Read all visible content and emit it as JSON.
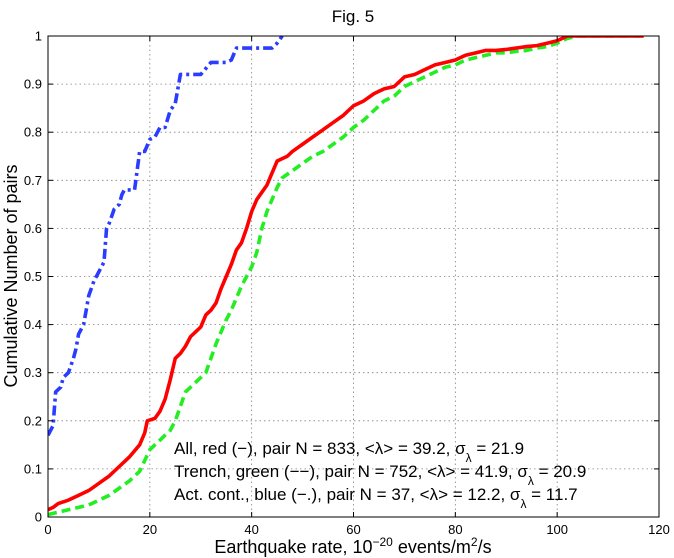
{
  "chart_data": {
    "type": "line",
    "title": "Fig. 5",
    "xlabel_prefix": "Earthquake rate, 10",
    "xlabel_exponent": "−20",
    "xlabel_mid": " events/m",
    "xlabel_exponent2": "2",
    "xlabel_suffix": "/s",
    "ylabel": "Cumulative Number of pairs",
    "xlim": [
      0,
      120
    ],
    "ylim": [
      0,
      1
    ],
    "xticks": [
      0,
      20,
      40,
      60,
      80,
      100,
      120
    ],
    "xtick_labels": [
      "0",
      "20",
      "40",
      "60",
      "80",
      "100",
      "120"
    ],
    "yticks": [
      0,
      0.1,
      0.2,
      0.3,
      0.4,
      0.5,
      0.6,
      0.7,
      0.8,
      0.9,
      1
    ],
    "ytick_labels": [
      "0",
      "0.1",
      "0.2",
      "0.3",
      "0.4",
      "0.5",
      "0.6",
      "0.7",
      "0.8",
      "0.9",
      "1"
    ],
    "grid": true,
    "legend_position": "bottom-right",
    "series": [
      {
        "name": "All",
        "label_text": "All, red (−), pair N = 833,  <λ> = 39.2,  σ",
        "label_sub": "λ",
        "label_end": " = 21.9",
        "color": "#ff0000",
        "dash": "solid",
        "x": [
          0,
          1,
          2,
          4,
          6,
          8,
          10,
          12,
          14,
          16,
          18,
          19,
          19.5,
          21,
          22,
          23,
          24,
          25,
          26,
          27,
          28,
          29,
          30,
          31,
          32,
          33,
          34,
          35,
          36,
          37,
          38,
          39,
          40,
          41,
          42,
          43,
          44,
          45,
          46,
          47,
          48,
          50,
          52,
          54,
          56,
          58,
          60,
          62,
          64,
          65,
          66,
          68,
          70,
          72,
          74,
          76,
          78,
          80,
          82,
          84,
          86,
          88,
          90,
          92,
          94,
          96,
          98,
          100,
          102,
          104,
          110,
          117
        ],
        "y": [
          0.015,
          0.02,
          0.028,
          0.035,
          0.045,
          0.055,
          0.07,
          0.085,
          0.105,
          0.125,
          0.15,
          0.175,
          0.2,
          0.205,
          0.22,
          0.245,
          0.285,
          0.33,
          0.34,
          0.355,
          0.375,
          0.385,
          0.395,
          0.42,
          0.43,
          0.445,
          0.475,
          0.5,
          0.525,
          0.555,
          0.57,
          0.6,
          0.635,
          0.66,
          0.675,
          0.69,
          0.715,
          0.74,
          0.745,
          0.75,
          0.76,
          0.775,
          0.79,
          0.805,
          0.82,
          0.835,
          0.855,
          0.865,
          0.88,
          0.885,
          0.89,
          0.895,
          0.915,
          0.92,
          0.93,
          0.94,
          0.945,
          0.95,
          0.96,
          0.965,
          0.97,
          0.97,
          0.972,
          0.975,
          0.978,
          0.98,
          0.985,
          0.99,
          1.0,
          1.0,
          1.0,
          1.0
        ]
      },
      {
        "name": "Trench",
        "label_text": "Trench, green (−−), pair N = 752,  <λ> = 41.9,  σ",
        "label_sub": "λ",
        "label_end": " = 20.9",
        "color": "#22ee22",
        "dash": "dashed",
        "x": [
          0,
          2,
          4,
          6,
          8,
          10,
          12,
          14,
          16,
          18,
          20,
          22,
          24,
          25,
          26,
          27,
          28,
          29,
          30,
          31,
          32,
          33,
          34,
          35,
          36,
          37,
          38,
          39,
          40,
          41,
          42,
          43,
          44,
          45,
          46,
          48,
          50,
          52,
          54,
          56,
          58,
          60,
          62,
          64,
          66,
          68,
          70,
          72,
          74,
          76,
          78,
          80,
          82,
          84,
          86,
          88,
          90,
          92,
          94,
          96,
          98,
          100,
          102,
          104,
          110,
          117
        ],
        "y": [
          0.005,
          0.01,
          0.015,
          0.02,
          0.025,
          0.035,
          0.045,
          0.06,
          0.075,
          0.095,
          0.14,
          0.16,
          0.18,
          0.2,
          0.23,
          0.26,
          0.27,
          0.28,
          0.29,
          0.3,
          0.33,
          0.36,
          0.385,
          0.41,
          0.43,
          0.455,
          0.48,
          0.5,
          0.52,
          0.55,
          0.6,
          0.635,
          0.66,
          0.685,
          0.705,
          0.72,
          0.735,
          0.75,
          0.76,
          0.775,
          0.79,
          0.81,
          0.825,
          0.845,
          0.865,
          0.875,
          0.895,
          0.905,
          0.915,
          0.925,
          0.935,
          0.94,
          0.95,
          0.955,
          0.96,
          0.965,
          0.965,
          0.968,
          0.97,
          0.975,
          0.978,
          0.985,
          0.995,
          1.0,
          1.0,
          1.0
        ]
      },
      {
        "name": "Act. cont.",
        "label_text": "Act. cont., blue (−.), pair N = 37,  <λ> = 12.2,  σ",
        "label_sub": "λ",
        "label_end": " = 11.7",
        "color": "#2a3cff",
        "dash": "dashdot",
        "x": [
          0,
          1,
          1.5,
          2.5,
          3,
          4,
          5,
          5.5,
          6,
          7,
          7.5,
          8,
          9,
          10,
          11,
          11.5,
          12,
          13,
          14,
          14.5,
          15,
          17,
          18,
          19,
          20,
          21,
          22,
          23,
          24,
          25,
          26,
          27,
          28,
          29,
          30,
          32,
          33,
          35,
          36,
          37,
          38,
          39,
          40,
          42,
          44,
          45,
          46
        ],
        "y": [
          0.17,
          0.19,
          0.26,
          0.27,
          0.29,
          0.3,
          0.33,
          0.35,
          0.38,
          0.4,
          0.43,
          0.46,
          0.49,
          0.51,
          0.53,
          0.6,
          0.61,
          0.64,
          0.65,
          0.67,
          0.68,
          0.68,
          0.76,
          0.76,
          0.785,
          0.79,
          0.81,
          0.81,
          0.845,
          0.86,
          0.92,
          0.92,
          0.92,
          0.92,
          0.92,
          0.945,
          0.945,
          0.945,
          0.95,
          0.975,
          0.975,
          0.975,
          0.975,
          0.975,
          0.975,
          0.985,
          1.0
        ]
      }
    ]
  }
}
